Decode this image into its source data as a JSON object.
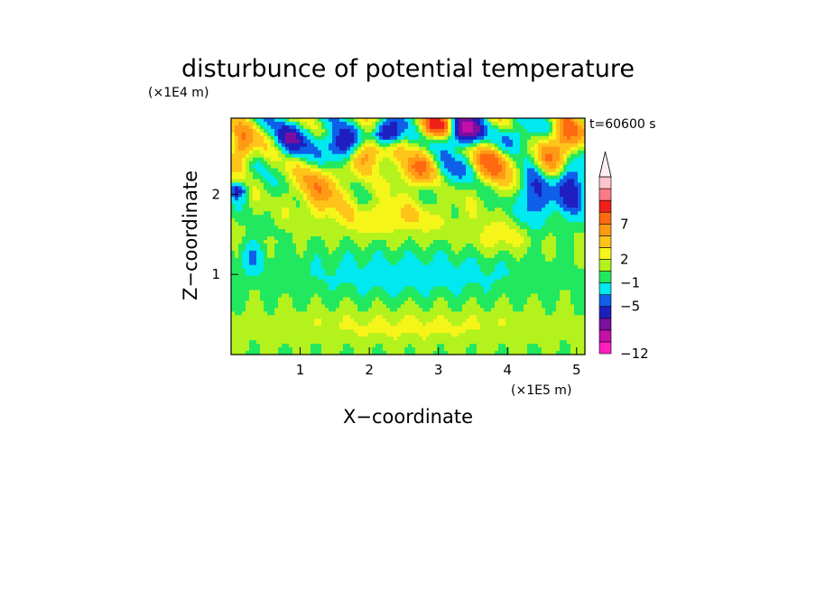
{
  "chart_data": {
    "type": "heatmap",
    "title": "disturbunce of potential temperature",
    "xlabel": "X−coordinate",
    "ylabel": "Z−coordinate",
    "x_unit": "(×1E5 m)",
    "y_unit": "(×1E4 m)",
    "time_label": "t=60600 s",
    "xlim": [
      0,
      5.12
    ],
    "ylim": [
      0,
      2.95
    ],
    "x_ticks": [
      {
        "value": 1,
        "label": "1"
      },
      {
        "value": 2,
        "label": "2"
      },
      {
        "value": 3,
        "label": "3"
      },
      {
        "value": 4,
        "label": "4"
      },
      {
        "value": 5,
        "label": "5"
      }
    ],
    "y_ticks": [
      {
        "value": 1,
        "label": "1"
      },
      {
        "value": 2,
        "label": "2"
      }
    ],
    "colorbar": {
      "colors": [
        "#ff1fbf",
        "#c40fa8",
        "#7a0fa0",
        "#1f1fbf",
        "#0f5fe8",
        "#00e8f0",
        "#22e860",
        "#b4f21e",
        "#f5f51a",
        "#ffc41a",
        "#ff9a14",
        "#ff6a10",
        "#f0201a",
        "#ff7a86",
        "#ffc4cc"
      ],
      "top_triangle_color": "#ffeef0",
      "labels": [
        {
          "value": -12,
          "label": "−12"
        },
        {
          "value": -5,
          "label": "−5"
        },
        {
          "value": -1,
          "label": "−1"
        },
        {
          "value": 2,
          "label": "2"
        },
        {
          "value": 7,
          "label": "7"
        }
      ],
      "label_band_index": [
        0,
        4,
        6,
        8,
        11
      ]
    },
    "features": [
      {
        "x": 2.6,
        "z": 0.35,
        "a": 1.2,
        "sx": 2.6,
        "sz": 0.22
      },
      {
        "x": 2.6,
        "z": 1.0,
        "a": -1.6,
        "sx": 1.9,
        "sz": 0.3
      },
      {
        "x": 2.3,
        "z": 1.7,
        "a": 2.0,
        "sx": 0.9,
        "sz": 0.22
      },
      {
        "x": 1.3,
        "z": 2.1,
        "a": 4.0,
        "sx": 0.35,
        "sz": 0.3
      },
      {
        "x": 0.9,
        "z": 2.7,
        "a": -5.0,
        "sx": 0.25,
        "sz": 0.2
      },
      {
        "x": 1.6,
        "z": 2.6,
        "a": -7.0,
        "sx": 0.3,
        "sz": 0.2
      },
      {
        "x": 2.25,
        "z": 2.75,
        "a": -9.0,
        "sx": 0.2,
        "sz": 0.15
      },
      {
        "x": 2.0,
        "z": 2.55,
        "a": 6.0,
        "sx": 0.3,
        "sz": 0.2
      },
      {
        "x": 2.7,
        "z": 2.3,
        "a": 5.0,
        "sx": 0.3,
        "sz": 0.2
      },
      {
        "x": 3.35,
        "z": 2.8,
        "a": -10.0,
        "sx": 0.25,
        "sz": 0.18
      },
      {
        "x": 3.0,
        "z": 2.85,
        "a": 8.0,
        "sx": 0.25,
        "sz": 0.15
      },
      {
        "x": 3.2,
        "z": 2.3,
        "a": -3.0,
        "sx": 0.3,
        "sz": 0.2
      },
      {
        "x": 3.8,
        "z": 2.4,
        "a": 5.5,
        "sx": 0.3,
        "sz": 0.25
      },
      {
        "x": 4.1,
        "z": 2.7,
        "a": -4.0,
        "sx": 0.25,
        "sz": 0.2
      },
      {
        "x": 4.4,
        "z": 2.0,
        "a": -5.0,
        "sx": 0.2,
        "sz": 0.35
      },
      {
        "x": 4.6,
        "z": 2.4,
        "a": 3.5,
        "sx": 0.25,
        "sz": 0.25
      },
      {
        "x": 4.9,
        "z": 2.1,
        "a": -6.0,
        "sx": 0.2,
        "sz": 0.35
      },
      {
        "x": 4.85,
        "z": 2.7,
        "a": 6.5,
        "sx": 0.2,
        "sz": 0.25
      },
      {
        "x": 0.15,
        "z": 2.6,
        "a": 5.0,
        "sx": 0.2,
        "sz": 0.25
      },
      {
        "x": 0.1,
        "z": 2.05,
        "a": -5.0,
        "sx": 0.12,
        "sz": 0.1
      },
      {
        "x": 0.3,
        "z": 1.2,
        "a": -2.5,
        "sx": 0.15,
        "sz": 0.2
      },
      {
        "x": 3.9,
        "z": 1.45,
        "a": 1.5,
        "sx": 0.5,
        "sz": 0.2
      }
    ]
  }
}
